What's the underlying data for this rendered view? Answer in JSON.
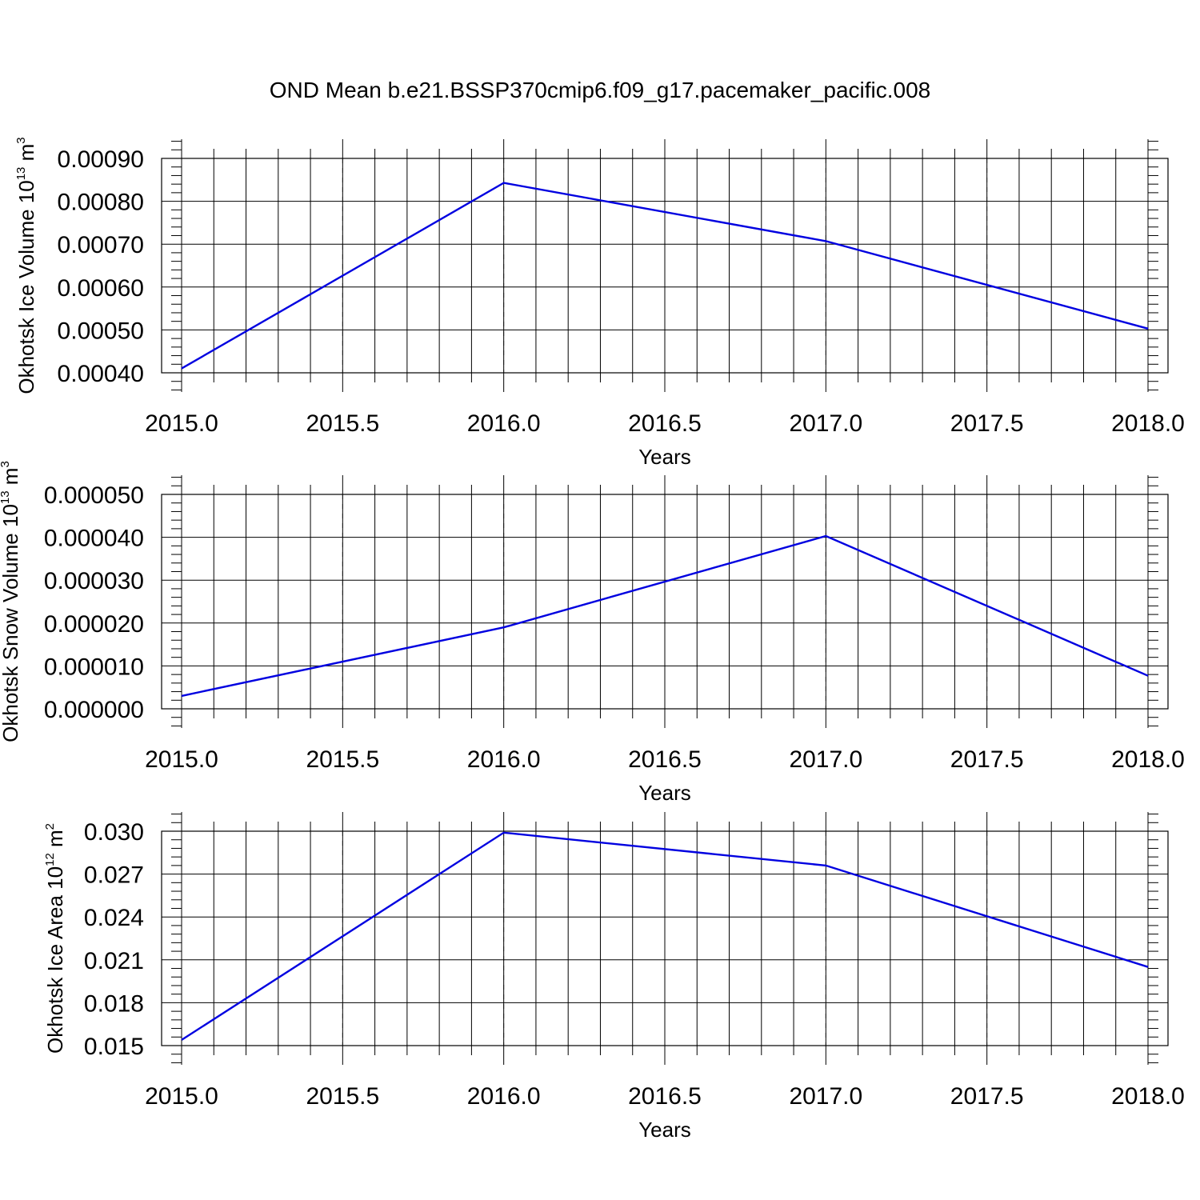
{
  "title": "OND Mean b.e21.BSSP370cmip6.f09_g17.pacemaker_pacific.008",
  "chart_data": [
    {
      "type": "line",
      "xlabel": "Years",
      "ylabel": "Okhotsk Ice Volume 10",
      "ylabel_sup": "13",
      "ylabel_unit": "m",
      "ylabel_unit_sup": "3",
      "x": [
        2015,
        2016,
        2017,
        2018
      ],
      "xlim": [
        2015,
        2018
      ],
      "xticks": [
        "2015.0",
        "2015.5",
        "2016.0",
        "2016.5",
        "2017.0",
        "2017.5",
        "2018.0"
      ],
      "ylim": [
        0.0004,
        0.0009
      ],
      "yticks": [
        "0.00040",
        "0.00050",
        "0.00060",
        "0.00070",
        "0.00080",
        "0.00090"
      ],
      "series": [
        {
          "values": [
            0.00041,
            0.000843,
            0.000707,
            0.000503
          ],
          "color": "#0000e0"
        }
      ],
      "grid": "vertical dashed"
    },
    {
      "type": "line",
      "xlabel": "Years",
      "ylabel": "Okhotsk Snow Volume 10",
      "ylabel_sup": "13",
      "ylabel_unit": "m",
      "ylabel_unit_sup": "3",
      "x": [
        2015,
        2016,
        2017,
        2018
      ],
      "xlim": [
        2015,
        2018
      ],
      "xticks": [
        "2015.0",
        "2015.5",
        "2016.0",
        "2016.5",
        "2017.0",
        "2017.5",
        "2018.0"
      ],
      "ylim": [
        0.0,
        5e-05
      ],
      "yticks": [
        "0.000000",
        "0.000010",
        "0.000020",
        "0.000030",
        "0.000040",
        "0.000050"
      ],
      "series": [
        {
          "values": [
            3e-06,
            1.9e-05,
            4.03e-05,
            7.7e-06
          ],
          "color": "#0000e0"
        }
      ],
      "grid": "vertical dashed"
    },
    {
      "type": "line",
      "xlabel": "Years",
      "ylabel": "Okhotsk Ice Area 10",
      "ylabel_sup": "12",
      "ylabel_unit": "m",
      "ylabel_unit_sup": "2",
      "x": [
        2015,
        2016,
        2017,
        2018
      ],
      "xlim": [
        2015,
        2018
      ],
      "xticks": [
        "2015.0",
        "2015.5",
        "2016.0",
        "2016.5",
        "2017.0",
        "2017.5",
        "2018.0"
      ],
      "ylim": [
        0.015,
        0.03
      ],
      "yticks": [
        "0.015",
        "0.018",
        "0.021",
        "0.024",
        "0.027",
        "0.030"
      ],
      "series": [
        {
          "values": [
            0.0154,
            0.0299,
            0.0276,
            0.0205
          ],
          "color": "#0000e0"
        }
      ],
      "grid": "vertical dashed"
    }
  ]
}
